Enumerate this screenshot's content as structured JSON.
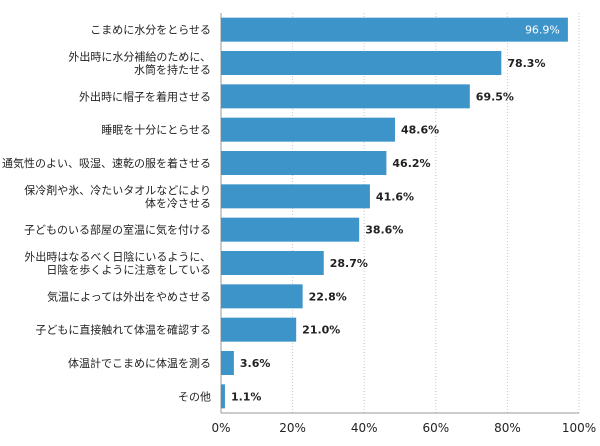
{
  "chart_data": {
    "type": "bar",
    "orientation": "horizontal",
    "categories": [
      [
        "こまめに水分をとらせる"
      ],
      [
        "外出時に水分補給のために、",
        "水筒を持たせる"
      ],
      [
        "外出時に帽子を着用させる"
      ],
      [
        "睡眠を十分にとらせる"
      ],
      [
        "通気性のよい、吸湿、速乾の服を着させる"
      ],
      [
        "保冷剤や氷、冷たいタオルなどにより",
        "体を冷させる"
      ],
      [
        "子どものいる部屋の室温に気を付ける"
      ],
      [
        "外出時はなるべく日陰にいるように、",
        "日陰を歩くように注意をしている"
      ],
      [
        "気温によっては外出をやめさせる"
      ],
      [
        "子どもに直接触れて体温を確認する"
      ],
      [
        "体温計でこまめに体温を測る"
      ],
      [
        "その他"
      ]
    ],
    "values": [
      96.9,
      78.3,
      69.5,
      48.6,
      46.2,
      41.6,
      38.6,
      28.7,
      22.8,
      21.0,
      3.6,
      1.1
    ],
    "value_labels": [
      "96.9%",
      "78.3%",
      "69.5%",
      "48.6%",
      "46.2%",
      "41.6%",
      "38.6%",
      "28.7%",
      "22.8%",
      "21.0%",
      "3.6%",
      "1.1%"
    ],
    "x_ticks": [
      "0%",
      "20%",
      "40%",
      "60%",
      "80%",
      "100%"
    ],
    "xlim": [
      0,
      100
    ],
    "grid": true,
    "title": "",
    "xlabel": "",
    "ylabel": ""
  },
  "colors": {
    "bar": "#3d94c9",
    "grid": "#c8c8c8",
    "axis": "#9a9a9a",
    "text": "#222222",
    "label_inside": "#ffffff"
  }
}
